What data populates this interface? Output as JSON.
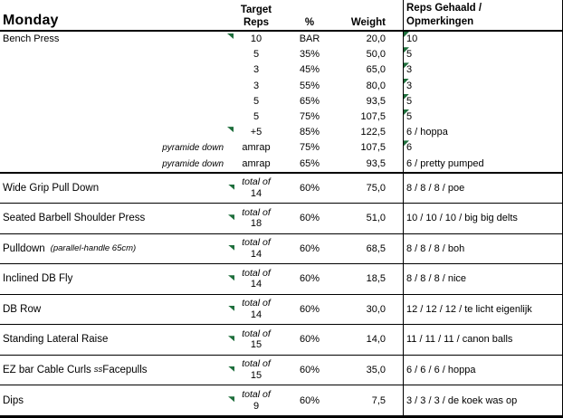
{
  "title": {
    "day": "Monday"
  },
  "columns": {
    "target_line1": "Target",
    "target_line2": "Reps",
    "percent": "%",
    "weight": "Weight",
    "results_line1": "Reps Gehaald /",
    "results_line2": "Opmerkingen"
  },
  "colors": {
    "marker_green": "#1e6e3c",
    "grid": "#000000",
    "background": "#ffffff"
  },
  "bench": {
    "rows": [
      {
        "name": "Bench Press",
        "note": "",
        "target": "10",
        "pct": "BAR",
        "weight": "20,0",
        "result": "10"
      },
      {
        "name": "",
        "note": "",
        "target": "5",
        "pct": "35%",
        "weight": "50,0",
        "result": "5"
      },
      {
        "name": "",
        "note": "",
        "target": "3",
        "pct": "45%",
        "weight": "65,0",
        "result": "3"
      },
      {
        "name": "",
        "note": "",
        "target": "3",
        "pct": "55%",
        "weight": "80,0",
        "result": "3"
      },
      {
        "name": "",
        "note": "",
        "target": "5",
        "pct": "65%",
        "weight": "93,5",
        "result": "5"
      },
      {
        "name": "",
        "note": "",
        "target": "5",
        "pct": "75%",
        "weight": "107,5",
        "result": "5"
      },
      {
        "name": "",
        "note": "",
        "target": "+5",
        "pct": "85%",
        "weight": "122,5",
        "result": "6 / hoppa"
      },
      {
        "name": "",
        "note": "pyramide down",
        "target": "amrap",
        "pct": "75%",
        "weight": "107,5",
        "result": "6"
      },
      {
        "name": "",
        "note": "pyramide down",
        "target": "amrap",
        "pct": "65%",
        "weight": "93,5",
        "result": "6 / pretty pumped"
      }
    ]
  },
  "blocks": [
    {
      "name": "Wide Grip Pull Down",
      "name_ss": "",
      "name_suffix": "",
      "name_note": "",
      "total_label": "total of",
      "total": "14",
      "pct": "60%",
      "weight": "75,0",
      "result": "8 / 8 / 8 / poe"
    },
    {
      "name": "Seated Barbell Shoulder Press",
      "name_ss": "",
      "name_suffix": "",
      "name_note": "",
      "total_label": "total of",
      "total": "18",
      "pct": "60%",
      "weight": "51,0",
      "result": "10 / 10 / 10 / big big delts"
    },
    {
      "name": "Pulldown",
      "name_ss": "",
      "name_suffix": "",
      "name_note": "(parallel-handle 65cm)",
      "total_label": "total of",
      "total": "14",
      "pct": "60%",
      "weight": "68,5",
      "result": "8 / 8 / 8 / boh"
    },
    {
      "name": "Inclined DB Fly",
      "name_ss": "",
      "name_suffix": "",
      "name_note": "",
      "total_label": "total of",
      "total": "14",
      "pct": "60%",
      "weight": "18,5",
      "result": "8 / 8 / 8 / nice"
    },
    {
      "name": "DB Row",
      "name_ss": "",
      "name_suffix": "",
      "name_note": "",
      "total_label": "total of",
      "total": "14",
      "pct": "60%",
      "weight": "30,0",
      "result": "12 / 12 / 12 / te licht eigenlijk"
    },
    {
      "name": "Standing Lateral Raise",
      "name_ss": "",
      "name_suffix": "",
      "name_note": "",
      "total_label": "total of",
      "total": "15",
      "pct": "60%",
      "weight": "14,0",
      "result": "11 / 11 / 11 / canon balls"
    },
    {
      "name": "EZ bar Cable Curls",
      "name_ss": "ss",
      "name_suffix": "Facepulls",
      "name_note": "",
      "total_label": "total of",
      "total": "15",
      "pct": "60%",
      "weight": "35,0",
      "result": "6 / 6 / 6 / hoppa"
    },
    {
      "name": "Dips",
      "name_ss": "",
      "name_suffix": "",
      "name_note": "",
      "total_label": "total of",
      "total": "9",
      "pct": "60%",
      "weight": "7,5",
      "result": "3 / 3 / 3 / de koek was op"
    }
  ]
}
